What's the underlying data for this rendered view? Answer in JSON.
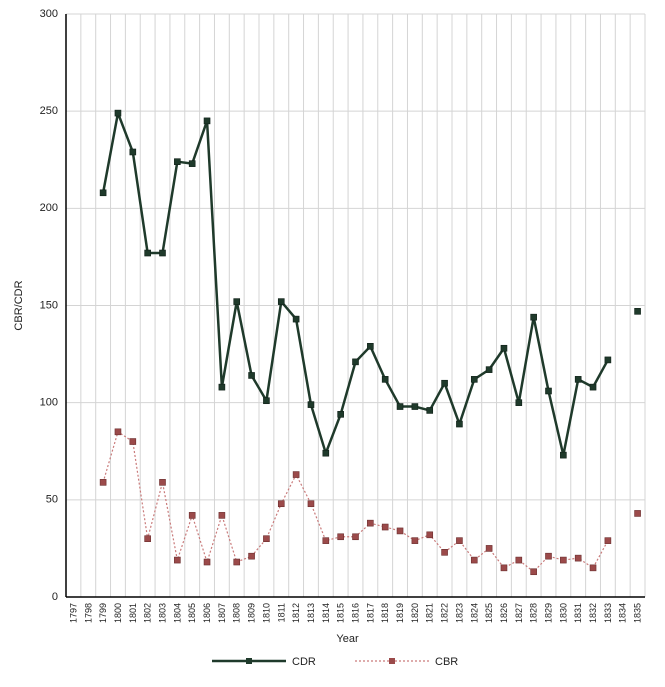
{
  "chart_data": {
    "type": "line",
    "xlabel": "Year",
    "ylabel": "CBR/CDR",
    "ylim": [
      0,
      300
    ],
    "yticks": [
      0,
      50,
      100,
      150,
      200,
      250,
      300
    ],
    "grid": true,
    "legend_position": "bottom",
    "categories": [
      "1797",
      "1798",
      "1799",
      "1800",
      "1801",
      "1802",
      "1803",
      "1804",
      "1805",
      "1806",
      "1807",
      "1808",
      "1809",
      "1810",
      "1811",
      "1812",
      "1813",
      "1814",
      "1815",
      "1816",
      "1817",
      "1818",
      "1819",
      "1820",
      "1821",
      "1822",
      "1823",
      "1824",
      "1825",
      "1826",
      "1827",
      "1828",
      "1829",
      "1830",
      "1831",
      "1832",
      "1833",
      "1834",
      "1835"
    ],
    "series": [
      {
        "name": "CDR",
        "color": "#1f3a2b",
        "style": "solid",
        "values": [
          null,
          null,
          208,
          249,
          229,
          177,
          177,
          224,
          223,
          245,
          108,
          152,
          114,
          101,
          152,
          143,
          99,
          74,
          94,
          121,
          129,
          112,
          98,
          98,
          96,
          110,
          89,
          112,
          117,
          128,
          100,
          144,
          106,
          73,
          112,
          108,
          122,
          null,
          147
        ]
      },
      {
        "name": "CBR",
        "color": "#8b3a3a",
        "style": "dotted",
        "values": [
          null,
          null,
          59,
          85,
          80,
          30,
          59,
          19,
          42,
          18,
          42,
          18,
          21,
          30,
          48,
          63,
          48,
          29,
          31,
          31,
          38,
          36,
          34,
          29,
          32,
          23,
          29,
          19,
          25,
          15,
          19,
          13,
          21,
          19,
          20,
          15,
          29,
          null,
          43
        ]
      }
    ]
  }
}
